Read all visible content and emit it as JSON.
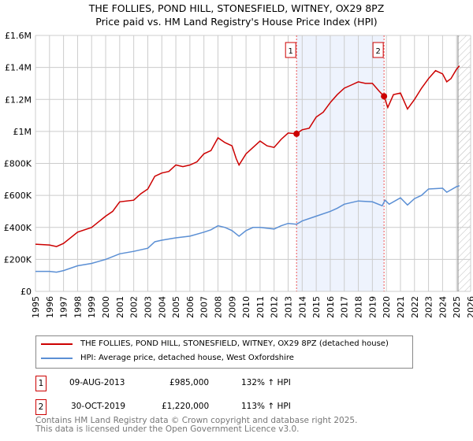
{
  "title": "THE FOLLIES, POND HILL, STONESFIELD, WITNEY, OX29 8PZ",
  "subtitle": "Price paid vs. HM Land Registry's House Price Index (HPI)",
  "chart_data": {
    "type": "line",
    "xlim": [
      1995,
      2026
    ],
    "ylim": [
      0,
      1600000
    ],
    "x_ticks": [
      "1995",
      "1996",
      "1997",
      "1998",
      "1999",
      "2000",
      "2001",
      "2002",
      "2003",
      "2004",
      "2005",
      "2006",
      "2007",
      "2008",
      "2009",
      "2010",
      "2011",
      "2012",
      "2013",
      "2014",
      "2015",
      "2016",
      "2017",
      "2018",
      "2019",
      "2020",
      "2021",
      "2022",
      "2023",
      "2024",
      "2025",
      "2026"
    ],
    "y_ticks": [
      {
        "v": 0,
        "label": "£0"
      },
      {
        "v": 200000,
        "label": "£200K"
      },
      {
        "v": 400000,
        "label": "£400K"
      },
      {
        "v": 600000,
        "label": "£600K"
      },
      {
        "v": 800000,
        "label": "£800K"
      },
      {
        "v": 1000000,
        "label": "£1M"
      },
      {
        "v": 1200000,
        "label": "£1.2M"
      },
      {
        "v": 1400000,
        "label": "£1.4M"
      },
      {
        "v": 1600000,
        "label": "£1.6M"
      }
    ],
    "grid": true,
    "shaded_span": [
      2013.6,
      2019.83
    ],
    "future_hatch_from": 2025.1,
    "series": [
      {
        "name": "THE FOLLIES, POND HILL, STONESFIELD, WITNEY, OX29 8PZ (detached house)",
        "color": "#cc0000",
        "x": [
          1995,
          1996,
          1996.5,
          1997,
          1998,
          1999,
          2000,
          2000.5,
          2001,
          2002,
          2002.5,
          2003,
          2003.5,
          2004,
          2004.5,
          2005,
          2005.5,
          2006,
          2006.5,
          2007,
          2007.5,
          2008,
          2008.5,
          2009,
          2009.3,
          2009.5,
          2010,
          2010.5,
          2011,
          2011.5,
          2012,
          2012.5,
          2013,
          2013.6,
          2014,
          2014.5,
          2015,
          2015.5,
          2016,
          2016.5,
          2017,
          2017.5,
          2018,
          2018.5,
          2019,
          2019.5,
          2019.83,
          2020.1,
          2020.5,
          2021,
          2021.5,
          2022,
          2022.5,
          2023,
          2023.5,
          2024,
          2024.3,
          2024.6,
          2025,
          2025.2
        ],
        "y": [
          295000,
          290000,
          280000,
          300000,
          370000,
          400000,
          470000,
          500000,
          560000,
          570000,
          610000,
          640000,
          720000,
          740000,
          750000,
          790000,
          780000,
          790000,
          810000,
          860000,
          880000,
          960000,
          930000,
          910000,
          830000,
          790000,
          860000,
          900000,
          940000,
          910000,
          900000,
          950000,
          990000,
          985000,
          1010000,
          1020000,
          1090000,
          1120000,
          1180000,
          1230000,
          1270000,
          1290000,
          1310000,
          1300000,
          1300000,
          1250000,
          1220000,
          1150000,
          1230000,
          1240000,
          1140000,
          1200000,
          1270000,
          1330000,
          1380000,
          1360000,
          1310000,
          1330000,
          1390000,
          1410000
        ]
      },
      {
        "name": "HPI: Average price, detached house, West Oxfordshire",
        "color": "#5b8fd4",
        "x": [
          1995,
          1996,
          1996.5,
          1997,
          1998,
          1999,
          2000,
          2001,
          2002,
          2003,
          2003.5,
          2004,
          2005,
          2006,
          2007,
          2007.5,
          2008,
          2008.5,
          2009,
          2009.5,
          2010,
          2010.5,
          2011,
          2012,
          2012.5,
          2013,
          2013.6,
          2014,
          2015,
          2016,
          2016.5,
          2017,
          2018,
          2019,
          2019.7,
          2019.9,
          2020.2,
          2021,
          2021.5,
          2022,
          2022.5,
          2023,
          2024,
          2024.3,
          2025,
          2025.2
        ],
        "y": [
          125000,
          125000,
          120000,
          130000,
          160000,
          175000,
          200000,
          235000,
          250000,
          270000,
          310000,
          320000,
          335000,
          345000,
          370000,
          385000,
          410000,
          400000,
          380000,
          345000,
          380000,
          400000,
          400000,
          390000,
          410000,
          425000,
          420000,
          440000,
          470000,
          500000,
          520000,
          545000,
          565000,
          560000,
          535000,
          570000,
          545000,
          585000,
          540000,
          580000,
          600000,
          640000,
          645000,
          620000,
          655000,
          660000
        ]
      }
    ],
    "annotations": [
      {
        "label": "1",
        "x": 2013.6,
        "y": 985000
      },
      {
        "label": "2",
        "x": 2019.83,
        "y": 1220000
      }
    ]
  },
  "legend": {
    "items": [
      "THE FOLLIES, POND HILL, STONESFIELD, WITNEY, OX29 8PZ (detached house)",
      "HPI: Average price, detached house, West Oxfordshire"
    ]
  },
  "transactions": [
    {
      "num": "1",
      "date": "09-AUG-2013",
      "price": "£985,000",
      "hpi": "132% ↑ HPI"
    },
    {
      "num": "2",
      "date": "30-OCT-2019",
      "price": "£1,220,000",
      "hpi": "113% ↑ HPI"
    }
  ],
  "footer": [
    "Contains HM Land Registry data © Crown copyright and database right 2025.",
    "This data is licensed under the Open Government Licence v3.0."
  ]
}
